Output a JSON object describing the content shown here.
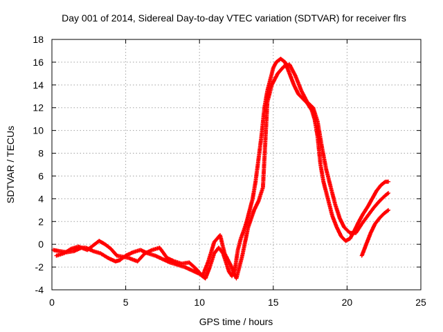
{
  "chart_data": {
    "type": "scatter",
    "title": "Day 001 of 2014, Sidereal Day-to-day VTEC variation (SDTVAR) for receiver flrs",
    "xlabel": "GPS time / hours",
    "ylabel": "SDTVAR / TECUs",
    "xlim": [
      0,
      25
    ],
    "ylim": [
      -4,
      18
    ],
    "xticks": [
      0,
      5,
      10,
      15,
      20,
      25
    ],
    "yticks": [
      -4,
      -2,
      0,
      2,
      4,
      6,
      8,
      10,
      12,
      14,
      16,
      18
    ],
    "grid": true,
    "marker": "+",
    "color": "#ff0000",
    "series": [
      {
        "name": "track-main",
        "x": [
          0.1,
          0.5,
          1.0,
          1.5,
          2.0,
          2.3,
          2.8,
          3.3,
          3.8,
          4.3,
          4.6,
          5.0,
          5.5,
          6.0,
          6.5,
          7.0,
          7.5,
          8.0,
          8.5,
          9.0,
          9.5,
          10.0,
          10.4,
          10.7,
          11.0,
          11.3,
          11.6,
          11.8,
          12.0,
          12.2,
          12.4,
          12.6,
          12.8,
          13.0,
          13.2,
          13.4,
          13.6,
          13.8,
          14.0,
          14.2,
          14.4,
          14.6,
          14.8,
          15.0,
          15.2,
          15.5,
          15.8,
          16.1,
          16.4,
          16.7,
          17.0,
          17.3,
          17.6,
          17.8,
          18.0,
          18.2,
          18.4,
          18.6,
          18.8,
          19.0,
          19.3,
          19.6,
          19.9,
          20.2,
          20.5,
          20.8,
          21.1,
          21.4,
          21.7,
          22.0,
          22.3,
          22.6,
          22.8
        ],
        "y": [
          -0.5,
          -0.6,
          -0.7,
          -0.6,
          -0.3,
          -0.3,
          -0.6,
          -0.8,
          -1.2,
          -1.5,
          -1.4,
          -1.0,
          -0.7,
          -0.5,
          -0.8,
          -1.0,
          -1.3,
          -1.6,
          -1.8,
          -2.0,
          -2.3,
          -2.6,
          -3.0,
          -2.0,
          -0.8,
          -0.3,
          -0.8,
          -1.6,
          -2.4,
          -2.8,
          -2.2,
          -0.5,
          0.5,
          1.2,
          2.0,
          3.0,
          4.0,
          5.5,
          7.5,
          9.5,
          12.0,
          13.5,
          14.5,
          15.5,
          16.0,
          16.3,
          16.0,
          15.0,
          14.0,
          13.2,
          12.8,
          12.4,
          11.8,
          11.0,
          9.5,
          7.0,
          5.5,
          4.5,
          3.5,
          2.5,
          1.5,
          0.7,
          0.3,
          0.5,
          1.2,
          2.0,
          2.7,
          3.3,
          4.0,
          4.7,
          5.2,
          5.5,
          5.5
        ]
      },
      {
        "name": "track-secondary",
        "x": [
          0.3,
          0.8,
          1.3,
          1.8,
          2.4,
          3.2,
          3.6,
          4.0,
          4.4,
          5.2,
          5.8,
          6.3,
          6.8,
          7.3,
          7.8,
          8.3,
          8.8,
          9.3,
          9.8,
          10.2,
          10.6,
          11.0,
          11.4,
          11.7,
          12.1,
          12.5,
          12.9,
          13.3,
          13.7,
          14.0,
          14.3,
          14.6,
          14.9,
          15.3,
          15.7,
          16.1,
          16.5,
          16.9,
          17.3,
          17.7,
          18.0,
          18.3,
          18.6,
          18.9,
          19.2,
          19.5,
          19.8,
          20.2,
          20.6,
          21.0,
          21.4,
          21.8,
          22.2,
          22.6,
          22.8
        ],
        "y": [
          -1.0,
          -0.8,
          -0.4,
          -0.2,
          -0.5,
          0.3,
          0.0,
          -0.4,
          -1.0,
          -1.2,
          -1.5,
          -0.8,
          -0.5,
          -0.3,
          -1.2,
          -1.5,
          -1.7,
          -1.6,
          -2.2,
          -2.8,
          -1.5,
          0.2,
          0.8,
          -0.8,
          -1.8,
          -3.0,
          -1.0,
          1.5,
          3.0,
          3.8,
          5.0,
          12.5,
          14.0,
          15.0,
          15.6,
          15.8,
          14.8,
          13.5,
          12.5,
          12.0,
          10.8,
          8.5,
          6.5,
          5.0,
          3.5,
          2.3,
          1.5,
          1.0,
          1.0,
          1.8,
          2.5,
          3.2,
          3.8,
          4.3,
          4.5
        ]
      },
      {
        "name": "track-late",
        "x": [
          21.0,
          21.3,
          21.6,
          21.9,
          22.2,
          22.5,
          22.8
        ],
        "y": [
          -1.0,
          0.0,
          1.0,
          1.8,
          2.3,
          2.7,
          3.0
        ]
      }
    ]
  }
}
